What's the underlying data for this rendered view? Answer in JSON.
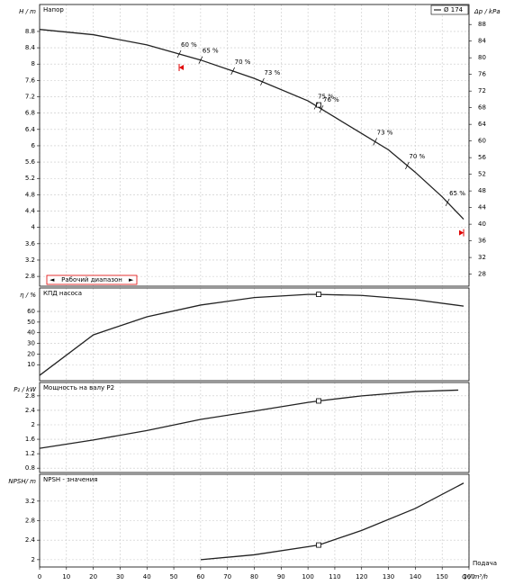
{
  "chart_data": [
    {
      "type": "line",
      "title": "Напор",
      "ylabel": "H / m",
      "y2label": "Δp / kPa",
      "x": [
        0,
        20,
        40,
        60,
        80,
        100,
        110,
        120,
        130,
        140,
        150,
        158
      ],
      "series": [
        {
          "name": "Ø 174",
          "color": "#222222",
          "values": [
            8.85,
            8.72,
            8.47,
            8.1,
            7.65,
            7.1,
            6.7,
            6.3,
            5.9,
            5.35,
            4.75,
            4.2
          ]
        }
      ],
      "xlim": [
        0,
        160
      ],
      "ylim": [
        2.56,
        9.46
      ],
      "yticks": [
        2.8,
        3.2,
        3.6,
        4,
        4.4,
        4.8,
        5.2,
        5.6,
        6,
        6.4,
        6.8,
        7.2,
        7.6,
        8,
        8.4,
        8.8
      ],
      "y2lim": [
        25.1,
        92.8
      ],
      "y2ticks": [
        28,
        32,
        36,
        40,
        44,
        48,
        52,
        56,
        60,
        64,
        68,
        72,
        76,
        80,
        84,
        88
      ],
      "annotations": [
        {
          "x": 52,
          "label": "60 %"
        },
        {
          "x": 60,
          "label": "65 %"
        },
        {
          "x": 72,
          "label": "70 %"
        },
        {
          "x": 83,
          "label": "73 %"
        },
        {
          "x": 103,
          "label": "75 %"
        },
        {
          "x": 105,
          "label": "76 %"
        },
        {
          "x": 125,
          "label": "73 %"
        },
        {
          "x": 137,
          "label": "70 %"
        },
        {
          "x": 152,
          "label": "65 %"
        }
      ],
      "range_label": "Рабочий диапазон",
      "range": [
        52,
        158
      ],
      "point": {
        "x": 104,
        "y": 7.0
      },
      "grid": true
    },
    {
      "type": "line",
      "title": "КПД насоса",
      "ylabel": "η / %",
      "x": [
        0,
        20,
        40,
        60,
        80,
        100,
        104,
        120,
        140,
        158
      ],
      "series": [
        {
          "name": "КПД",
          "color": "#222222",
          "values": [
            0,
            38,
            55,
            66,
            73,
            76,
            76,
            75,
            71,
            65
          ]
        }
      ],
      "xlim": [
        0,
        160
      ],
      "ylim": [
        -5,
        82
      ],
      "yticks": [
        10,
        20,
        30,
        40,
        50,
        60
      ],
      "point": {
        "x": 104,
        "y": 76
      },
      "grid": true
    },
    {
      "type": "line",
      "title": "Мощность на валу P2",
      "ylabel": "P₂ / kW",
      "x": [
        0,
        20,
        40,
        60,
        80,
        100,
        104,
        120,
        140,
        156
      ],
      "series": [
        {
          "name": "P2",
          "color": "#222222",
          "values": [
            1.35,
            1.58,
            1.84,
            2.15,
            2.38,
            2.62,
            2.66,
            2.8,
            2.92,
            2.96
          ]
        }
      ],
      "xlim": [
        0,
        160
      ],
      "ylim": [
        0.68,
        3.17
      ],
      "yticks": [
        0.8,
        1.2,
        1.6,
        2,
        2.4,
        2.8
      ],
      "point": {
        "x": 104,
        "y": 2.66
      },
      "grid": true
    },
    {
      "type": "line",
      "title": "NPSH - значения",
      "ylabel": "NPSH/ m",
      "xlabel": "Q / m³/h",
      "xlabel2": "Подача",
      "x": [
        60,
        80,
        104,
        120,
        140,
        158
      ],
      "series": [
        {
          "name": "NPSH",
          "color": "#222222",
          "values": [
            2.0,
            2.1,
            2.3,
            2.6,
            3.05,
            3.57
          ]
        }
      ],
      "xlim": [
        0,
        160
      ],
      "ylim": [
        1.85,
        3.75
      ],
      "yticks": [
        2,
        2.4,
        2.8,
        3.2
      ],
      "xticks": [
        0,
        10,
        20,
        30,
        40,
        50,
        60,
        70,
        80,
        90,
        100,
        110,
        120,
        130,
        140,
        150,
        160
      ],
      "point": {
        "x": 104,
        "y": 2.3
      },
      "grid": true
    }
  ]
}
